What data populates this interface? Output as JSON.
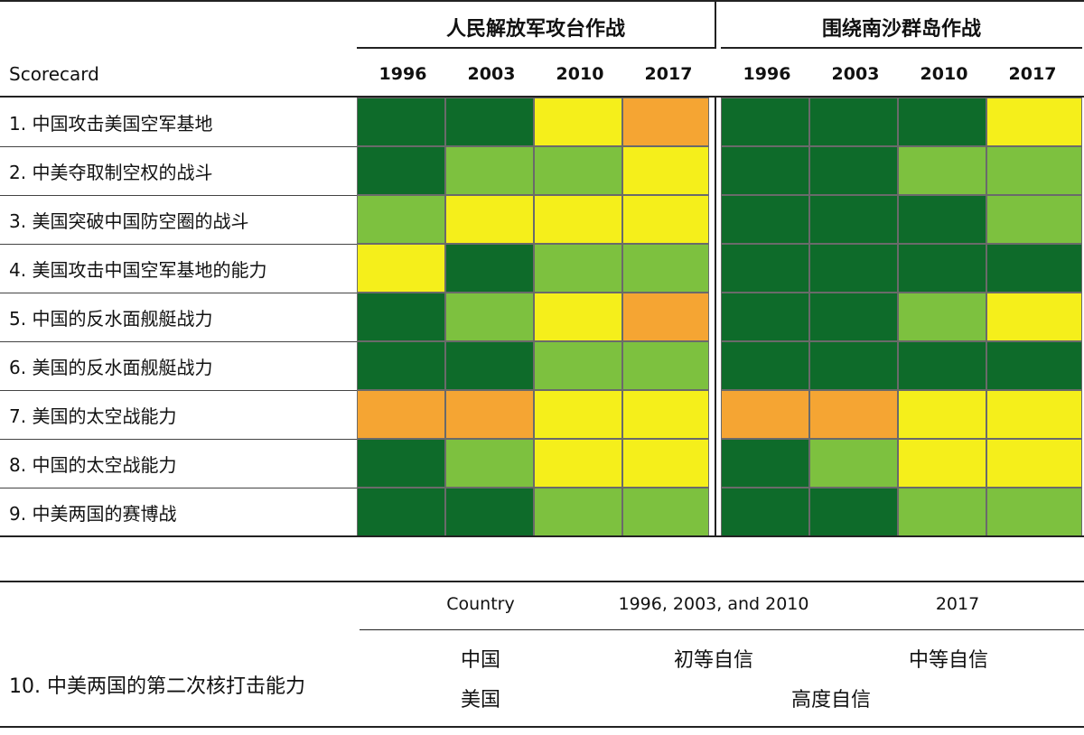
{
  "chart_data": {
    "type": "heatmap",
    "groups": [
      {
        "title": "人民解放军攻台作战",
        "years": [
          "1996",
          "2003",
          "2010",
          "2017"
        ]
      },
      {
        "title": "围绕南沙群岛作战",
        "years": [
          "1996",
          "2003",
          "2010",
          "2017"
        ]
      }
    ],
    "row_header": "Scorecard",
    "rows": [
      {
        "label": "1. 中国攻击美国空军基地",
        "ratings": [
          [
            "dark_green",
            "dark_green",
            "yellow",
            "orange"
          ],
          [
            "dark_green",
            "dark_green",
            "dark_green",
            "yellow"
          ]
        ]
      },
      {
        "label": "2. 中美夺取制空权的战斗",
        "ratings": [
          [
            "dark_green",
            "light_green",
            "light_green",
            "yellow"
          ],
          [
            "dark_green",
            "dark_green",
            "light_green",
            "light_green"
          ]
        ]
      },
      {
        "label": "3. 美国突破中国防空圈的战斗",
        "ratings": [
          [
            "light_green",
            "yellow",
            "yellow",
            "yellow"
          ],
          [
            "dark_green",
            "dark_green",
            "dark_green",
            "light_green"
          ]
        ]
      },
      {
        "label": "4. 美国攻击中国空军基地的能力",
        "ratings": [
          [
            "yellow",
            "dark_green",
            "light_green",
            "light_green"
          ],
          [
            "dark_green",
            "dark_green",
            "dark_green",
            "dark_green"
          ]
        ]
      },
      {
        "label": "5. 中国的反水面舰艇战力",
        "ratings": [
          [
            "dark_green",
            "light_green",
            "yellow",
            "orange"
          ],
          [
            "dark_green",
            "dark_green",
            "light_green",
            "yellow"
          ]
        ]
      },
      {
        "label": "6. 美国的反水面舰艇战力",
        "ratings": [
          [
            "dark_green",
            "dark_green",
            "light_green",
            "light_green"
          ],
          [
            "dark_green",
            "dark_green",
            "dark_green",
            "dark_green"
          ]
        ]
      },
      {
        "label": "7. 美国的太空战能力",
        "ratings": [
          [
            "orange",
            "orange",
            "yellow",
            "yellow"
          ],
          [
            "orange",
            "orange",
            "yellow",
            "yellow"
          ]
        ]
      },
      {
        "label": "8. 中国的太空战能力",
        "ratings": [
          [
            "dark_green",
            "light_green",
            "yellow",
            "yellow"
          ],
          [
            "dark_green",
            "light_green",
            "yellow",
            "yellow"
          ]
        ]
      },
      {
        "label": "9. 中美两国的赛博战",
        "ratings": [
          [
            "dark_green",
            "dark_green",
            "light_green",
            "light_green"
          ],
          [
            "dark_green",
            "dark_green",
            "light_green",
            "light_green"
          ]
        ]
      }
    ],
    "colors": {
      "dark_green": "#0e6b2a",
      "light_green": "#7dc13f",
      "yellow": "#f5ef1b",
      "orange": "#f5a533"
    }
  },
  "nuclear_table": {
    "label": "10. 中美两国的第二次核打击能力",
    "headers": {
      "country": "Country",
      "early": "1996, 2003, and 2010",
      "late": "2017"
    },
    "rows": [
      {
        "country": "中国",
        "early": "初等自信",
        "late": "中等自信"
      },
      {
        "country": "美国",
        "merged": "高度自信"
      }
    ]
  }
}
